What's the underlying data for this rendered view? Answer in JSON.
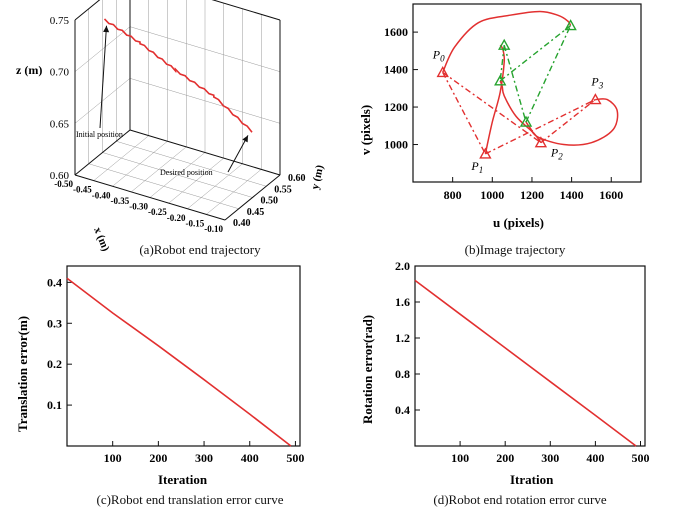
{
  "colors": {
    "trajectory": "#e23030",
    "target_points": "#27a32f",
    "axis": "#111111",
    "grid": "#9a9a9a"
  },
  "chart_data": [
    {
      "panel": "a",
      "type": "line",
      "projection": "3d",
      "caption": "(a)Robot end trajectory",
      "xlabel": "x (m)",
      "ylabel": "y (m)",
      "zlabel": "z (m)",
      "x_ticks": [
        "-0.50",
        "-0.45",
        "-0.40",
        "-0.35",
        "-0.30",
        "-0.25",
        "-0.20",
        "-0.15",
        "-0.10"
      ],
      "y_ticks": [
        "0.40",
        "0.45",
        "0.50",
        "0.55",
        "0.60"
      ],
      "z_ticks": [
        "0.60",
        "0.65",
        "0.70",
        "0.75"
      ],
      "xlim": [
        -0.5,
        -0.1
      ],
      "ylim": [
        0.4,
        0.6
      ],
      "zlim": [
        0.6,
        0.75
      ],
      "grid": true,
      "annotations": [
        "Initial position",
        "Desired position"
      ],
      "series": [
        {
          "x": [
            -0.48,
            -0.4,
            -0.32,
            -0.24,
            -0.16
          ],
          "y": [
            0.48,
            0.5,
            0.52,
            0.55,
            0.58
          ],
          "z": [
            0.735,
            0.717,
            0.695,
            0.672,
            0.64
          ]
        }
      ]
    },
    {
      "panel": "b",
      "type": "line",
      "caption": "(b)Image trajectory",
      "xlabel": "u (pixels)",
      "ylabel": "v (pixels)",
      "xlim": [
        600,
        1750
      ],
      "ylim": [
        800,
        1750
      ],
      "x_ticks": [
        800,
        1000,
        1200,
        1400,
        1600
      ],
      "y_ticks": [
        1000,
        1200,
        1400,
        1600
      ],
      "point_labels": [
        "P0",
        "P1",
        "P2",
        "P3"
      ],
      "initial_points": [
        [
          750,
          1385
        ],
        [
          965,
          950
        ],
        [
          1245,
          1010
        ],
        [
          1520,
          1240
        ]
      ],
      "desired_points": [
        [
          1060,
          1530
        ],
        [
          1040,
          1340
        ],
        [
          1170,
          1120
        ],
        [
          1395,
          1635
        ]
      ],
      "trajectories": [
        {
          "x": [
            750,
            810,
            930,
            1090,
            1240,
            1330,
            1380,
            1395
          ],
          "y": [
            1385,
            1520,
            1650,
            1690,
            1710,
            1690,
            1660,
            1635
          ]
        },
        {
          "x": [
            965,
            1000,
            1040,
            1060,
            1055,
            1048,
            1040
          ],
          "y": [
            950,
            1120,
            1280,
            1440,
            1500,
            1520,
            1530
          ]
        },
        {
          "x": [
            1245,
            1210,
            1120,
            1060,
            1050,
            1040
          ],
          "y": [
            1010,
            1060,
            1150,
            1260,
            1310,
            1340
          ]
        },
        {
          "x": [
            1520,
            1580,
            1630,
            1610,
            1500,
            1360,
            1230,
            1190,
            1170
          ],
          "y": [
            1240,
            1240,
            1180,
            1080,
            1010,
            1000,
            1040,
            1090,
            1120
          ]
        }
      ]
    },
    {
      "panel": "c",
      "type": "line",
      "caption": "(c)Robot end translation error curve",
      "xlabel": "Iteration",
      "ylabel": "Translation error(m)",
      "xlim": [
        0,
        510
      ],
      "ylim": [
        0,
        0.44
      ],
      "x_ticks": [
        100,
        200,
        300,
        400,
        500
      ],
      "y_ticks": [
        0.1,
        0.2,
        0.3,
        0.4
      ],
      "series": [
        {
          "x": [
            0,
            100,
            200,
            300,
            400,
            490
          ],
          "y": [
            0.41,
            0.325,
            0.245,
            0.162,
            0.078,
            0.0
          ]
        }
      ]
    },
    {
      "panel": "d",
      "type": "line",
      "caption": "(d)Robot end rotation error curve",
      "xlabel": "Itration",
      "ylabel": "Rotation error(rad)",
      "xlim": [
        0,
        510
      ],
      "ylim": [
        0,
        2.0
      ],
      "x_ticks": [
        100,
        200,
        300,
        400,
        500
      ],
      "y_ticks": [
        0.4,
        0.8,
        1.2,
        1.6,
        2.0
      ],
      "series": [
        {
          "x": [
            0,
            100,
            200,
            300,
            400,
            490
          ],
          "y": [
            1.84,
            1.465,
            1.09,
            0.715,
            0.34,
            0.0
          ]
        }
      ]
    }
  ]
}
